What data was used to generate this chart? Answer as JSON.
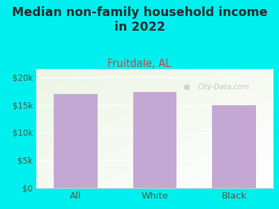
{
  "title": "Median non-family household income\nin 2022",
  "subtitle": "Fruitdale, AL",
  "categories": [
    "All",
    "White",
    "Black"
  ],
  "values": [
    17000,
    17300,
    15000
  ],
  "bar_color": "#c4a8d4",
  "bg_color": "#00F0F0",
  "chart_bg_color": "#f0f5e8",
  "chart_bg_right": "#fafaf5",
  "title_color": "#2a2a2a",
  "subtitle_color": "#cc4444",
  "axis_label_color": "#555533",
  "yticks": [
    0,
    5000,
    10000,
    15000,
    20000
  ],
  "ytick_labels": [
    "$0",
    "$5k",
    "$10k",
    "$15k",
    "$20k"
  ],
  "ylim": [
    0,
    21500
  ],
  "watermark": "City-Data.com",
  "title_fontsize": 12.5,
  "subtitle_fontsize": 10.5
}
